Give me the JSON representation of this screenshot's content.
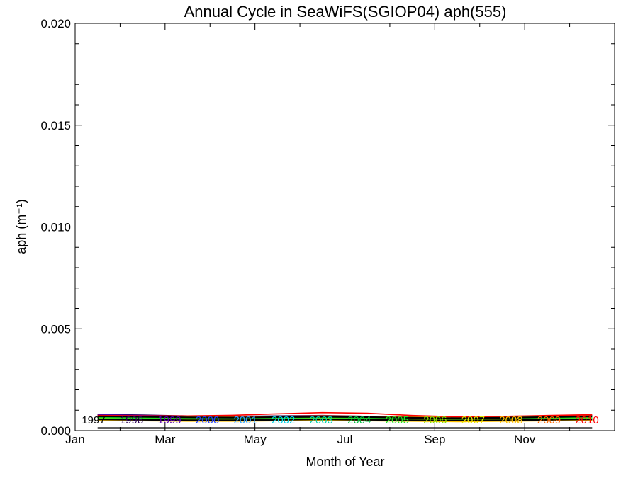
{
  "chart_data": {
    "type": "line",
    "title": "Annual Cycle in SeaWiFS(SGIOP04) aph(555)",
    "xlabel": "Month of Year",
    "ylabel": "aph (m⁻¹)",
    "xlim": [
      1,
      13
    ],
    "ylim": [
      0,
      0.02
    ],
    "x_ticks": [
      1,
      3,
      5,
      7,
      9,
      11
    ],
    "x_tick_labels": [
      "Jan",
      "Mar",
      "May",
      "Jul",
      "Sep",
      "Nov"
    ],
    "y_ticks": [
      0,
      0.005,
      0.01,
      0.015,
      0.02
    ],
    "y_tick_labels": [
      "0.000",
      "0.005",
      "0.010",
      "0.015",
      "0.020"
    ],
    "grid": false,
    "x": [
      1.5,
      2.5,
      3.5,
      4.5,
      5.5,
      6.5,
      7.5,
      8.5,
      9.5,
      10.5,
      11.5,
      12.5
    ],
    "series": [
      {
        "name": "1997",
        "color": "#000000",
        "values": [
          0.00075,
          0.00072,
          0.00068,
          0.00066,
          0.00068,
          0.0007,
          0.00068,
          0.00064,
          0.00062,
          0.00064,
          0.00068,
          0.00072
        ]
      },
      {
        "name": "1998",
        "color": "#2a0055",
        "values": [
          0.0008,
          0.00076,
          0.00072,
          0.0007,
          0.00072,
          0.00074,
          0.0007,
          0.00066,
          0.00064,
          0.00066,
          0.0007,
          0.00074
        ]
      },
      {
        "name": "1999",
        "color": "#5500aa",
        "values": [
          0.00078,
          0.00074,
          0.0007,
          0.00068,
          0.0007,
          0.00072,
          0.00068,
          0.00064,
          0.00062,
          0.00064,
          0.00068,
          0.00072
        ]
      },
      {
        "name": "2000",
        "color": "#1f3fff",
        "values": [
          0.00062,
          0.0006,
          0.00058,
          0.00058,
          0.0006,
          0.00062,
          0.0006,
          0.00058,
          0.00056,
          0.00058,
          0.0006,
          0.00062
        ]
      },
      {
        "name": "2001",
        "color": "#2aa0ff",
        "values": [
          0.00056,
          0.00054,
          0.00052,
          0.00052,
          0.00054,
          0.00056,
          0.00054,
          0.00052,
          0.0005,
          0.00052,
          0.00054,
          0.00056
        ]
      },
      {
        "name": "2002",
        "color": "#00d4e6",
        "values": [
          0.00052,
          0.0005,
          0.00049,
          0.00049,
          0.0005,
          0.00052,
          0.0005,
          0.00049,
          0.00048,
          0.00049,
          0.0005,
          0.00052
        ]
      },
      {
        "name": "2003",
        "color": "#00d2a8",
        "values": [
          0.0005,
          0.00049,
          0.00048,
          0.00048,
          0.00049,
          0.0005,
          0.00049,
          0.00048,
          0.00047,
          0.00048,
          0.00049,
          0.0005
        ]
      },
      {
        "name": "2004",
        "color": "#00c040",
        "values": [
          0.0006,
          0.00058,
          0.00056,
          0.00056,
          0.00058,
          0.0006,
          0.00058,
          0.00056,
          0.00055,
          0.00056,
          0.00058,
          0.0006
        ]
      },
      {
        "name": "2005",
        "color": "#20e020",
        "values": [
          0.00064,
          0.00062,
          0.0006,
          0.0006,
          0.00062,
          0.00064,
          0.00062,
          0.0006,
          0.00058,
          0.0006,
          0.00062,
          0.00064
        ]
      },
      {
        "name": "2006",
        "color": "#88e000",
        "values": [
          0.00058,
          0.00056,
          0.00054,
          0.00054,
          0.00056,
          0.00058,
          0.00056,
          0.00054,
          0.00052,
          0.00054,
          0.00056,
          0.00058
        ]
      },
      {
        "name": "2007",
        "color": "#e6e600",
        "values": [
          0.00054,
          0.00052,
          0.0005,
          0.0005,
          0.00052,
          0.00054,
          0.00052,
          0.0005,
          0.00048,
          0.0005,
          0.00052,
          0.00054
        ]
      },
      {
        "name": "2008",
        "color": "#ffc000",
        "values": [
          0.0005,
          0.00048,
          0.00046,
          0.00046,
          0.00048,
          0.0005,
          0.00048,
          0.00046,
          0.00044,
          0.00046,
          0.00048,
          0.0005
        ]
      },
      {
        "name": "2009",
        "color": "#ff6a00",
        "values": [
          0.00072,
          0.0007,
          0.00068,
          0.00068,
          0.0007,
          0.00072,
          0.0007,
          0.00068,
          0.00066,
          0.00068,
          0.0007,
          0.00072
        ]
      },
      {
        "name": "2010",
        "color": "#ff0000",
        "values": [
          0.00074,
          0.00072,
          0.00072,
          0.00075,
          0.00082,
          0.00088,
          0.00085,
          0.00074,
          0.00068,
          0.0007,
          0.00074,
          0.00078
        ]
      },
      {
        "name": "",
        "color": "#000000",
        "values": [
          0.0007,
          0.00068,
          0.00065,
          0.00064,
          0.00066,
          0.00068,
          0.00066,
          0.00063,
          0.00061,
          0.00063,
          0.00066,
          0.0007
        ]
      },
      {
        "name": "",
        "color": "#000000",
        "values": [
          0.00055,
          0.00053,
          0.00051,
          0.00051,
          0.00053,
          0.00055,
          0.00053,
          0.00051,
          0.0005,
          0.00051,
          0.00053,
          0.00055
        ]
      },
      {
        "name": "",
        "color": "#000000",
        "values": [
          0.00012,
          0.00012,
          0.00012,
          0.00012,
          0.00012,
          0.00012,
          0.00012,
          0.00012,
          0.00012,
          0.00012,
          0.00012,
          0.00012
        ]
      }
    ]
  }
}
